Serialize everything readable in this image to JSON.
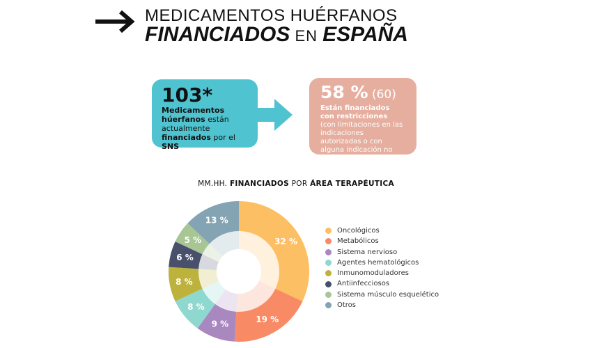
{
  "header": {
    "line1": "MEDICAMENTOS HUÉRFANOS",
    "line2_bold": "FINANCIADOS",
    "line2_mid": " EN ",
    "line2_end": "ESPAÑA"
  },
  "card_left": {
    "number": "103*",
    "bold1": "Medicamentos húerfanos",
    "normal1": " están actualmente ",
    "bold2": "financiados",
    "normal2": " por el ",
    "bold3": "SNS",
    "color": "#4fc3cf"
  },
  "card_right": {
    "percent": "58 %",
    "count": " (60)",
    "bold": "Están financiados con restricciones",
    "note": "(con limitaciones en las indicaciones autorizadas o con alguna indicación no financiada)",
    "color": "#e6ae9f"
  },
  "chart_data": {
    "type": "pie",
    "variant": "donut",
    "title_parts": {
      "a": "MM.HH. ",
      "b": "FINANCIADOS",
      "c": " POR ",
      "d": "ÁREA TERAPÉUTICA"
    },
    "legend_position": "right",
    "slices": [
      {
        "name": "Oncológicos",
        "value": 32,
        "label": "32 %",
        "color": "#fdbf63"
      },
      {
        "name": "Metabólicos",
        "value": 19,
        "label": "19 %",
        "color": "#f88b65"
      },
      {
        "name": "Sistema nervioso",
        "value": 9,
        "label": "9 %",
        "color": "#a988c0"
      },
      {
        "name": "Agentes hematológicos",
        "value": 8,
        "label": "8 %",
        "color": "#8ed8cf"
      },
      {
        "name": "Inmunomoduladores",
        "value": 8,
        "label": "8 %",
        "color": "#bdb33c"
      },
      {
        "name": "Antiinfecciosos",
        "value": 6,
        "label": "6 %",
        "color": "#48506b"
      },
      {
        "name": "Sistema músculo esquelético",
        "value": 5,
        "label": "5 %",
        "color": "#a8c594"
      },
      {
        "name": "Otros",
        "value": 13,
        "label": "13 %",
        "color": "#84a4b4"
      }
    ]
  }
}
